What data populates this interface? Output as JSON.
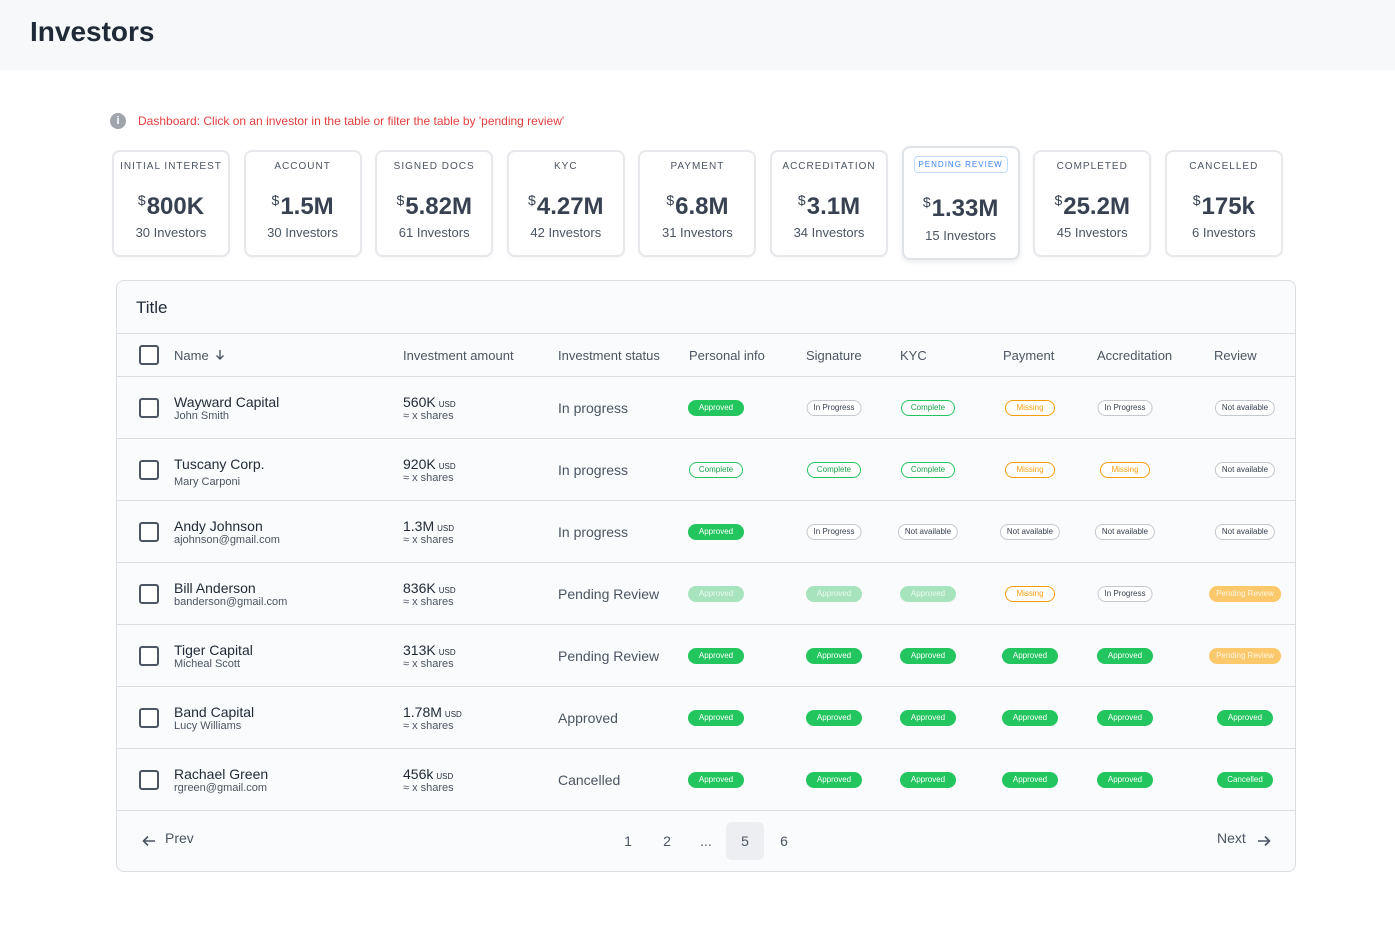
{
  "header": {
    "title": "Investors"
  },
  "notice": "Dashboard: Click on an investor in the table or filter the table by 'pending review'",
  "stages": [
    {
      "label": "INITIAL INTEREST",
      "currency": "$",
      "amount": "800K",
      "investors": "30 Investors"
    },
    {
      "label": "ACCOUNT",
      "currency": "$",
      "amount": "1.5M",
      "investors": "30 Investors"
    },
    {
      "label": "SIGNED DOCS",
      "currency": "$",
      "amount": "5.82M",
      "investors": "61 Investors"
    },
    {
      "label": "KYC",
      "currency": "$",
      "amount": "4.27M",
      "investors": "42 Investors"
    },
    {
      "label": "PAYMENT",
      "currency": "$",
      "amount": "6.8M",
      "investors": "31 Investors"
    },
    {
      "label": "ACCREDITATION",
      "currency": "$",
      "amount": "3.1M",
      "investors": "34 Investors"
    },
    {
      "label": "PENDING REVIEW",
      "currency": "$",
      "amount": "1.33M",
      "investors": "15 Investors"
    },
    {
      "label": "COMPLETED",
      "currency": "$",
      "amount": "25.2M",
      "investors": "45 Investors"
    },
    {
      "label": "CANCELLED",
      "currency": "$",
      "amount": "175k",
      "investors": "6 Investors"
    }
  ],
  "table": {
    "title": "Title",
    "columns": [
      "Name",
      "Investment amount",
      "Investment status",
      "Personal info",
      "Signature",
      "KYC",
      "Payment",
      "Accreditation",
      "Review"
    ],
    "rows": [
      {
        "name": "Wayward Capital",
        "contact": "John Smith",
        "amount": "560K",
        "currency": "USD",
        "shares": "≈ x shares",
        "status": "In progress",
        "badges": [
          "Approved",
          "In Progress",
          "Complete",
          "Missing",
          "In Progress",
          "Not available"
        ]
      },
      {
        "name": "Tuscany Corp.",
        "contact": "Mary Carponi",
        "amount": "920K",
        "currency": "USD",
        "shares": "≈ x shares",
        "status": "In progress",
        "badges": [
          "Complete",
          "Complete",
          "Complete",
          "Missing",
          "Missing",
          "Not available"
        ]
      },
      {
        "name": "Andy Johnson",
        "contact": "ajohnson@gmail.com",
        "amount": "1.3M",
        "currency": "USD",
        "shares": "≈ x shares",
        "status": "In progress",
        "badges": [
          "Approved",
          "In Progress",
          "Not available",
          "Not available",
          "Not available",
          "Not available"
        ]
      },
      {
        "name": "Bill Anderson",
        "contact": "banderson@gmail.com",
        "amount": "836K",
        "currency": "USD",
        "shares": "≈ x shares",
        "status": "Pending Review",
        "badges": [
          "Approved",
          "Approved",
          "Approved",
          "Missing",
          "In Progress",
          "Pending Review"
        ]
      },
      {
        "name": "Tiger Capital",
        "contact": "Micheal Scott",
        "amount": "313K",
        "currency": "USD",
        "shares": "≈ x shares",
        "status": "Pending Review",
        "badges": [
          "Approved",
          "Approved",
          "Approved",
          "Approved",
          "Approved",
          "Pending Review"
        ]
      },
      {
        "name": "Band Capital",
        "contact": "Lucy Williams",
        "amount": "1.78M",
        "currency": "USD",
        "shares": "≈ x shares",
        "status": "Approved",
        "badges": [
          "Approved",
          "Approved",
          "Approved",
          "Approved",
          "Approved",
          "Approved"
        ]
      },
      {
        "name": "Rachael Green",
        "contact": "rgreen@gmail.com",
        "amount": "456k",
        "currency": "USD",
        "shares": "≈ x shares",
        "status": "Cancelled",
        "badges": [
          "Approved",
          "Approved",
          "Approved",
          "Approved",
          "Approved",
          "Cancelled"
        ]
      }
    ]
  },
  "pagination": {
    "prev": "Prev",
    "pages": [
      "1",
      "2",
      "...",
      "5",
      "6"
    ],
    "next": "Next"
  }
}
